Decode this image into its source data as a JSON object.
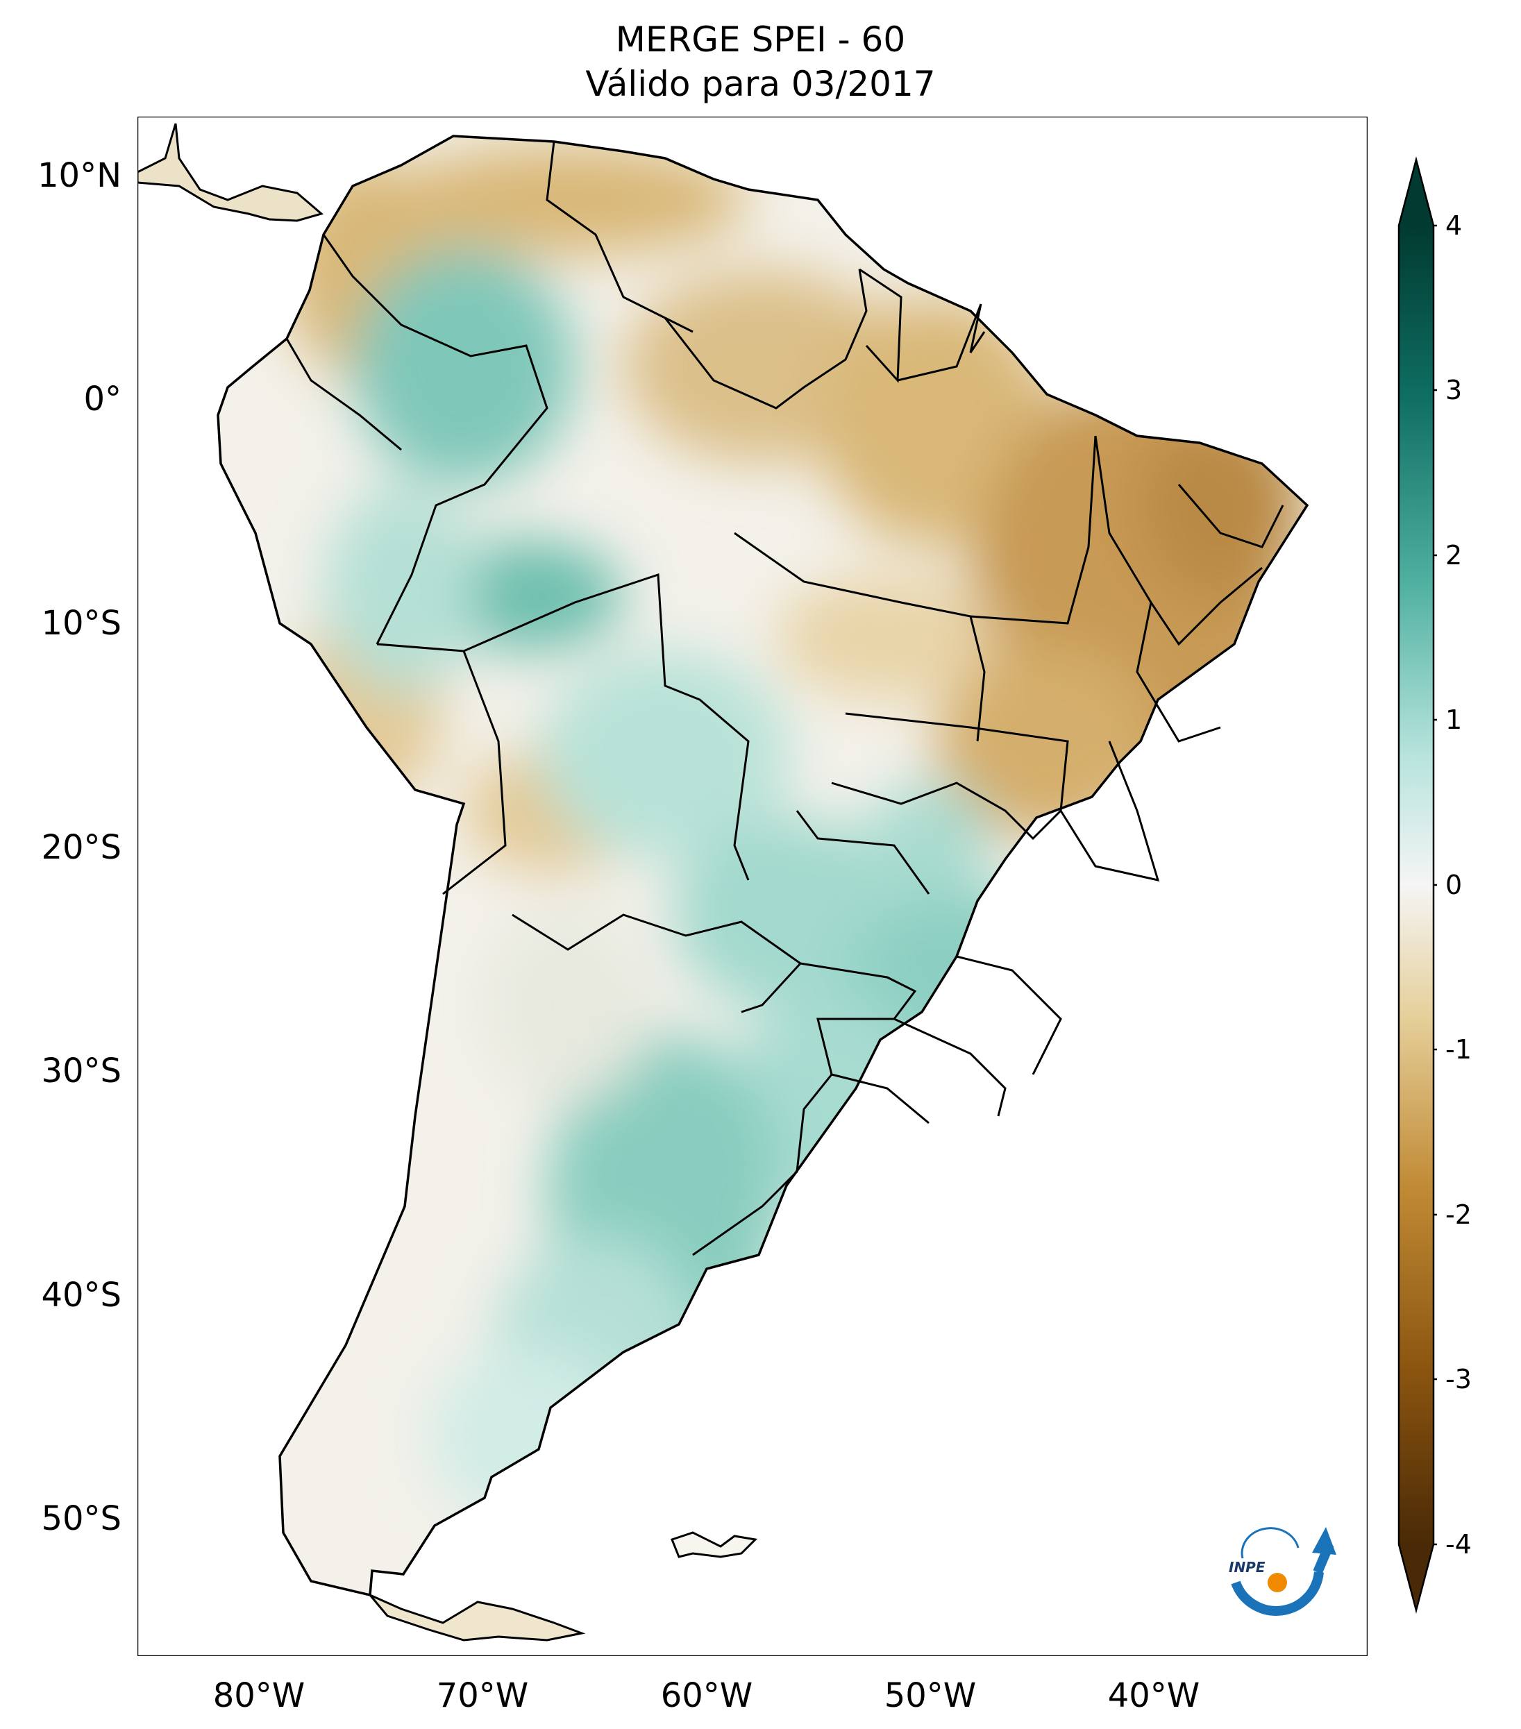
{
  "title": {
    "line1": "MERGE   SPEI - 60",
    "line2": "Válido para 03/2017"
  },
  "axes": {
    "lat_labels": [
      "10°N",
      "0°",
      "10°S",
      "20°S",
      "30°S",
      "40°S",
      "50°S"
    ],
    "lon_labels": [
      "80°W",
      "70°W",
      "60°W",
      "50°W",
      "40°W"
    ]
  },
  "colorbar": {
    "tick_labels": [
      "4",
      "3",
      "2",
      "1",
      "0",
      "-1",
      "-2",
      "-3",
      "-4"
    ],
    "range": [
      -4,
      4
    ],
    "colors": {
      "min": "#4a2a06",
      "dry_strong": "#8a5410",
      "dry": "#c08a35",
      "dry_light": "#e6cf9a",
      "neutral": "#f5f5f5",
      "wet_light": "#b6e3dc",
      "wet": "#4fb0a0",
      "wet_strong": "#0f6e62",
      "max": "#013a30"
    }
  },
  "logo": {
    "text": "INPE",
    "colors": {
      "arc": "#1a73b9",
      "dot": "#f08a00"
    }
  },
  "map_colors": {
    "dry": "#d9b878",
    "dry_strong": "#c79a55",
    "wet": "#9fd6cc",
    "wet_strong": "#5ab8a6",
    "neutral": "#f3f1ea",
    "border": "#000000"
  }
}
